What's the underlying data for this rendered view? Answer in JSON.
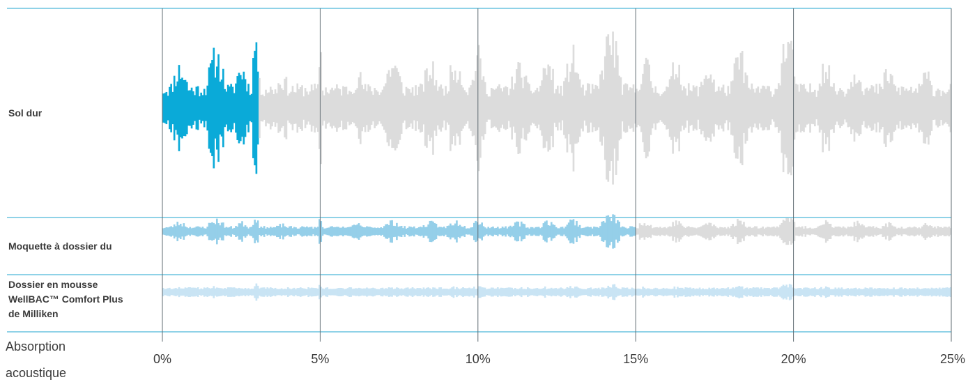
{
  "chart_data": {
    "type": "area",
    "xlabel": "Absorption acoustique",
    "xlabel_lines": [
      "Absorption",
      "acoustique"
    ],
    "x_ticks": [
      {
        "value": 0,
        "label": "0%"
      },
      {
        "value": 5,
        "label": "5%"
      },
      {
        "value": 10,
        "label": "10%"
      },
      {
        "value": 15,
        "label": "15%"
      },
      {
        "value": 20,
        "label": "20%"
      },
      {
        "value": 25,
        "label": "25%"
      }
    ],
    "xlim": [
      0,
      25
    ],
    "grid": true,
    "colors": {
      "accent": "#0aaad8",
      "mid": "#95cfe9",
      "light": "#c9e4f4",
      "grey": "#dcdcdc",
      "grid_horizontal": "#1fa6cf",
      "grid_vertical": "#5f6b72",
      "text": "#3b3b3b"
    },
    "series": [
      {
        "name": "Sol dur",
        "label_lines": [
          "Sol dur"
        ],
        "highlight_end": 3,
        "amplitude_scale": 1.0,
        "highlight_color": "#0aaad8",
        "rest_color": "#dcdcdc",
        "seed": 11
      },
      {
        "name": "Moquette à dossier du",
        "label_lines": [
          "Moquette à dossier du"
        ],
        "highlight_end": 15,
        "amplitude_scale": 0.42,
        "highlight_color": "#95cfe9",
        "rest_color": "#dcdcdc",
        "seed": 23
      },
      {
        "name": "Dossier en mousse WellBAC™ Comfort Plus de Milliken",
        "label_lines": [
          "Dossier en mousse",
          "WellBAC™ Comfort Plus",
          "de Milliken"
        ],
        "highlight_end": 25,
        "amplitude_scale": 0.34,
        "highlight_color": "#c9e4f4",
        "rest_color": "#c9e4f4",
        "seed": 37
      }
    ]
  }
}
